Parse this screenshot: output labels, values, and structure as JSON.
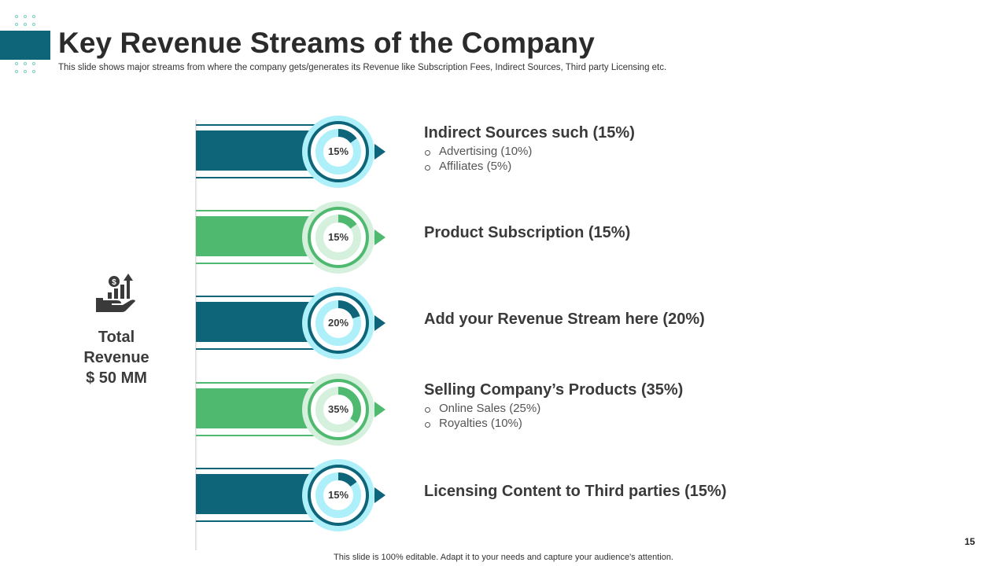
{
  "header": {
    "title": "Key Revenue Streams of the Company",
    "subtitle": "This slide shows major streams from where the company gets/generates its Revenue like Subscription Fees, Indirect Sources, Third party Licensing etc."
  },
  "total": {
    "icon": "revenue-growth-hand-icon",
    "line1": "Total",
    "line2": "Revenue",
    "line3": "$ 50 MM"
  },
  "colors": {
    "teal": "#0e6478",
    "green": "#4fba6f",
    "light_teal": "#aef0fa",
    "light_green": "#d5f0dc"
  },
  "streams": [
    {
      "percent_label": "15%",
      "percent": 15,
      "color": "teal",
      "heading": "Indirect Sources such (15%)",
      "bullets": [
        "Advertising (10%)",
        "Affiliates (5%)"
      ]
    },
    {
      "percent_label": "15%",
      "percent": 15,
      "color": "green",
      "heading": "Product Subscription (15%)",
      "bullets": []
    },
    {
      "percent_label": "20%",
      "percent": 20,
      "color": "teal",
      "heading": "Add your Revenue Stream here (20%)",
      "bullets": []
    },
    {
      "percent_label": "35%",
      "percent": 35,
      "color": "green",
      "heading": "Selling Company’s Products (35%)",
      "bullets": [
        "Online Sales (25%)",
        "Royalties (10%)"
      ]
    },
    {
      "percent_label": "15%",
      "percent": 15,
      "color": "teal",
      "heading": "Licensing Content to Third parties (15%)",
      "bullets": []
    }
  ],
  "page_number": "15",
  "footer": "This slide is 100% editable. Adapt it to your needs and capture your audience's attention."
}
